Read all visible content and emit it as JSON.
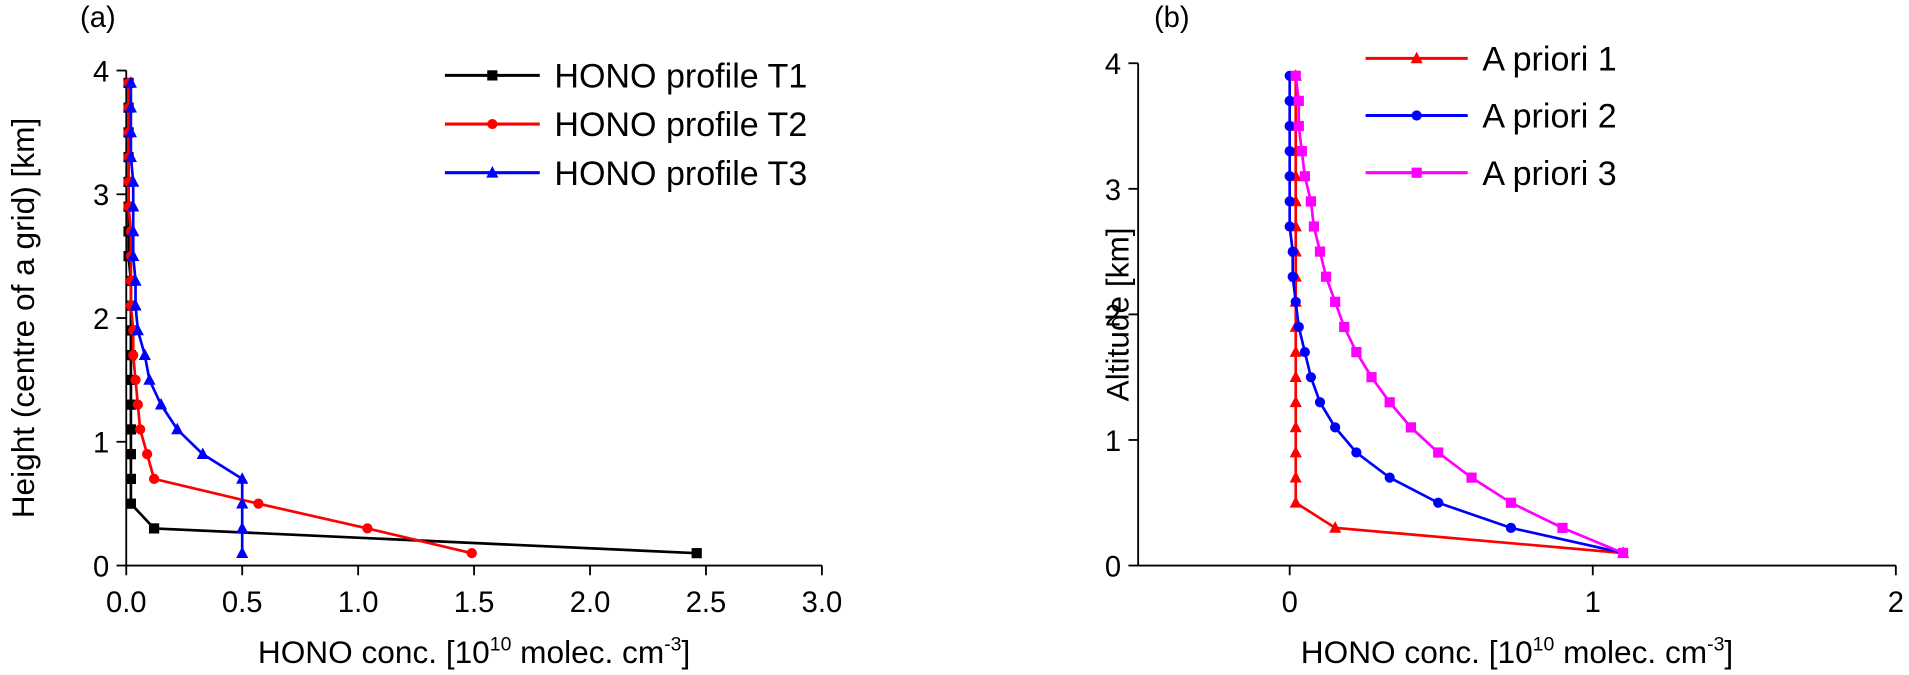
{
  "chart_data": [
    {
      "type": "line",
      "panel_label": "(a)",
      "ylabel": "Height (centre of a grid) [km]",
      "xlabel": [
        {
          "text": "HONO conc. [10"
        },
        {
          "text": "10",
          "sup": true
        },
        {
          "text": " molec. cm"
        },
        {
          "text": "-3",
          "sup": true
        },
        {
          "text": "]"
        }
      ],
      "xlim": [
        0,
        3
      ],
      "ylim": [
        0,
        4
      ],
      "xticks": [
        {
          "value": 0,
          "label": "0.0"
        },
        {
          "value": 0.5,
          "label": "0.5"
        },
        {
          "value": 1,
          "label": "1.0"
        },
        {
          "value": 1.5,
          "label": "1.5"
        },
        {
          "value": 2,
          "label": "2.0"
        },
        {
          "value": 2.5,
          "label": "2.5"
        },
        {
          "value": 3,
          "label": "3.0"
        }
      ],
      "yticks": [
        0,
        1,
        2,
        3,
        4
      ],
      "legend": "upper right",
      "y": [
        0.1,
        0.3,
        0.5,
        0.7,
        0.9,
        1.1,
        1.3,
        1.5,
        1.7,
        1.9,
        2.1,
        2.3,
        2.5,
        2.7,
        2.9,
        3.1,
        3.3,
        3.5,
        3.7,
        3.9
      ],
      "series": [
        {
          "name": "HONO profile T1",
          "color": "#000000",
          "marker": "square",
          "values": [
            2.46,
            0.12,
            0.02,
            0.02,
            0.02,
            0.02,
            0.02,
            0.02,
            0.02,
            0.02,
            0.02,
            0.02,
            0.01,
            0.01,
            0.01,
            0.01,
            0.01,
            0.01,
            0.01,
            0.01
          ]
        },
        {
          "name": "HONO profile T2",
          "color": "#ff0000",
          "marker": "circle",
          "values": [
            1.49,
            1.04,
            0.57,
            0.12,
            0.09,
            0.06,
            0.05,
            0.04,
            0.03,
            0.03,
            0.02,
            0.02,
            0.02,
            0.02,
            0.01,
            0.01,
            0.01,
            0.01,
            0.01,
            0.01
          ]
        },
        {
          "name": "HONO profile T3",
          "color": "#0000ff",
          "marker": "triangle",
          "values": [
            0.5,
            0.5,
            0.5,
            0.5,
            0.33,
            0.22,
            0.15,
            0.1,
            0.08,
            0.05,
            0.04,
            0.04,
            0.03,
            0.03,
            0.03,
            0.03,
            0.02,
            0.02,
            0.02,
            0.02
          ]
        }
      ]
    },
    {
      "type": "line",
      "panel_label": "(b)",
      "ylabel": "Altitude [km]",
      "xlabel": [
        {
          "text": "HONO conc. [10"
        },
        {
          "text": "10",
          "sup": true
        },
        {
          "text": " molec. cm"
        },
        {
          "text": "-3",
          "sup": true
        },
        {
          "text": "]"
        }
      ],
      "xlim": [
        -0.5,
        2
      ],
      "ylim": [
        0,
        4
      ],
      "xticks": [
        0,
        1,
        2
      ],
      "yticks": [
        0,
        1,
        2,
        3,
        4
      ],
      "legend": "upper left",
      "y": [
        0.1,
        0.3,
        0.5,
        0.7,
        0.9,
        1.1,
        1.3,
        1.5,
        1.7,
        1.9,
        2.1,
        2.3,
        2.5,
        2.7,
        2.9,
        3.1,
        3.3,
        3.5,
        3.7,
        3.9
      ],
      "series": [
        {
          "name": "A priori 1",
          "color": "#ff0000",
          "marker": "triangle",
          "values": [
            1.1,
            0.15,
            0.02,
            0.02,
            0.02,
            0.02,
            0.02,
            0.02,
            0.02,
            0.02,
            0.02,
            0.02,
            0.02,
            0.02,
            0.02,
            0.02,
            0.02,
            0.02,
            0.02,
            0.02
          ]
        },
        {
          "name": "A priori 2",
          "color": "#0000ff",
          "marker": "circle",
          "values": [
            1.1,
            0.73,
            0.49,
            0.33,
            0.22,
            0.15,
            0.1,
            0.07,
            0.05,
            0.03,
            0.02,
            0.01,
            0.01,
            0.0,
            0.0,
            0.0,
            0.0,
            0.0,
            0.0,
            0.0
          ]
        },
        {
          "name": "A priori 3",
          "color": "#ff00ff",
          "marker": "square",
          "values": [
            1.1,
            0.9,
            0.73,
            0.6,
            0.49,
            0.4,
            0.33,
            0.27,
            0.22,
            0.18,
            0.15,
            0.12,
            0.1,
            0.08,
            0.07,
            0.05,
            0.04,
            0.03,
            0.03,
            0.02
          ]
        }
      ]
    }
  ]
}
